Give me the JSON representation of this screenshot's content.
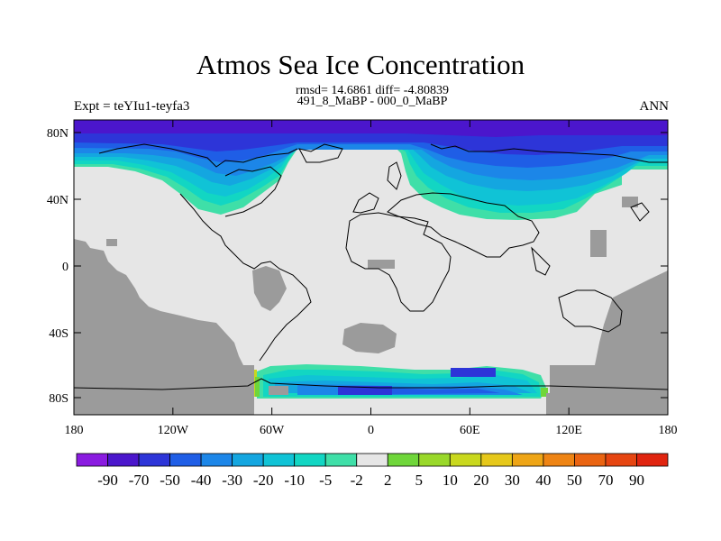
{
  "title": "Atmos Sea Ice Concentration",
  "stats_line": "rmsd= 14.6861 diff= -4.80839",
  "comparison": "491_8_MaBP - 000_0_MaBP",
  "experiment": "Expt = teYIu1-teyfa3",
  "season": "ANN",
  "x_ticks": [
    "180",
    "120W",
    "60W",
    "0",
    "60E",
    "120E",
    "180"
  ],
  "y_ticks": [
    "80N",
    "40N",
    "0",
    "40S",
    "80S"
  ],
  "colorbar": {
    "labels": [
      "-90",
      "-70",
      "-50",
      "-40",
      "-30",
      "-20",
      "-10",
      "-5",
      "-2",
      "2",
      "5",
      "10",
      "20",
      "30",
      "40",
      "50",
      "70",
      "90"
    ],
    "colors": [
      "#8a1be0",
      "#4b16cc",
      "#2d35d8",
      "#1f5ee6",
      "#1c86e8",
      "#14a6e0",
      "#10c3d6",
      "#12d6c3",
      "#3fdfa8",
      "#e6e6e6",
      "#6fd63a",
      "#99d82a",
      "#c9d81e",
      "#e6c81a",
      "#eea516",
      "#ee8414",
      "#ea6412",
      "#e64511",
      "#e0240f"
    ]
  },
  "colors": {
    "land_mask": "#9b9b9b",
    "no_change": "#e6e6e6",
    "coast": "#000000"
  }
}
